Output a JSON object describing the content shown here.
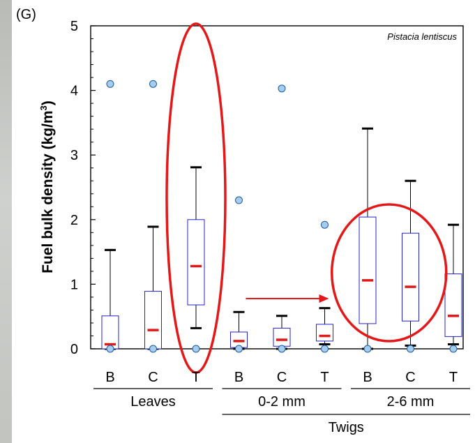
{
  "panel_label": "(G)",
  "chart_data": {
    "type": "box",
    "species_annotation": "Pistacia lentiscus",
    "ylabel": "Fuel bulk density (kg/m",
    "ylabel_superscript": "3",
    "ylabel_close": ")",
    "ylim": [
      0,
      5
    ],
    "yticks": [
      0,
      1,
      2,
      3,
      4,
      5
    ],
    "categories": [
      "B",
      "C",
      "T",
      "B",
      "C",
      "T",
      "B",
      "C",
      "T"
    ],
    "groups": [
      {
        "label": "Leaves",
        "start": 0,
        "end": 2
      },
      {
        "label": "0-2 mm",
        "start": 3,
        "end": 5
      },
      {
        "label": "2-6 mm",
        "start": 6,
        "end": 8
      }
    ],
    "supergroup": {
      "label": "Twigs",
      "start": 3,
      "end": 8
    },
    "boxes": [
      {
        "category": "B",
        "whisker_low": 0,
        "q1": 0,
        "median": 0.07,
        "q3": 0.51,
        "whisker_high": 1.53,
        "outliers": [
          4.1,
          0
        ]
      },
      {
        "category": "C",
        "whisker_low": 0,
        "q1": 0,
        "median": 0.29,
        "q3": 0.89,
        "whisker_high": 1.89,
        "outliers": [
          4.1,
          0
        ]
      },
      {
        "category": "T",
        "whisker_low": 0.32,
        "q1": 0.68,
        "median": 1.28,
        "q3": 2.0,
        "whisker_high": 2.81,
        "outliers": [
          0
        ]
      },
      {
        "category": "B",
        "whisker_low": 0,
        "q1": 0.02,
        "median": 0.12,
        "q3": 0.26,
        "whisker_high": 0.57,
        "outliers": [
          2.3,
          0
        ]
      },
      {
        "category": "C",
        "whisker_low": 0,
        "q1": 0.04,
        "median": 0.14,
        "q3": 0.32,
        "whisker_high": 0.51,
        "outliers": [
          4.03,
          0
        ]
      },
      {
        "category": "T",
        "whisker_low": 0.07,
        "q1": 0.12,
        "median": 0.2,
        "q3": 0.38,
        "whisker_high": 0.63,
        "outliers": [
          1.92,
          0
        ]
      },
      {
        "category": "B",
        "whisker_low": 0,
        "q1": 0.39,
        "median": 1.06,
        "q3": 2.04,
        "whisker_high": 3.41,
        "outliers": [
          0
        ]
      },
      {
        "category": "C",
        "whisker_low": 0.05,
        "q1": 0.43,
        "median": 0.96,
        "q3": 1.79,
        "whisker_high": 2.6,
        "outliers": [
          0
        ]
      },
      {
        "category": "T",
        "whisker_low": 0.07,
        "q1": 0.19,
        "median": 0.51,
        "q3": 1.16,
        "whisker_high": 1.92,
        "outliers": [
          0
        ]
      }
    ],
    "highlights": [
      {
        "type": "ellipse",
        "category_index_center": 2
      },
      {
        "type": "ellipse",
        "category_index_center": 6.5
      },
      {
        "type": "arrow",
        "from_category_index": 3,
        "to_category_index": 5.5,
        "value": 0.77
      }
    ],
    "colors": {
      "box": "#2323cc",
      "median": "#e31818",
      "outlier_fill": "#a6cdee",
      "outlier_stroke": "#1a5aa0",
      "highlight": "#e31818",
      "axis": "#000000"
    }
  }
}
